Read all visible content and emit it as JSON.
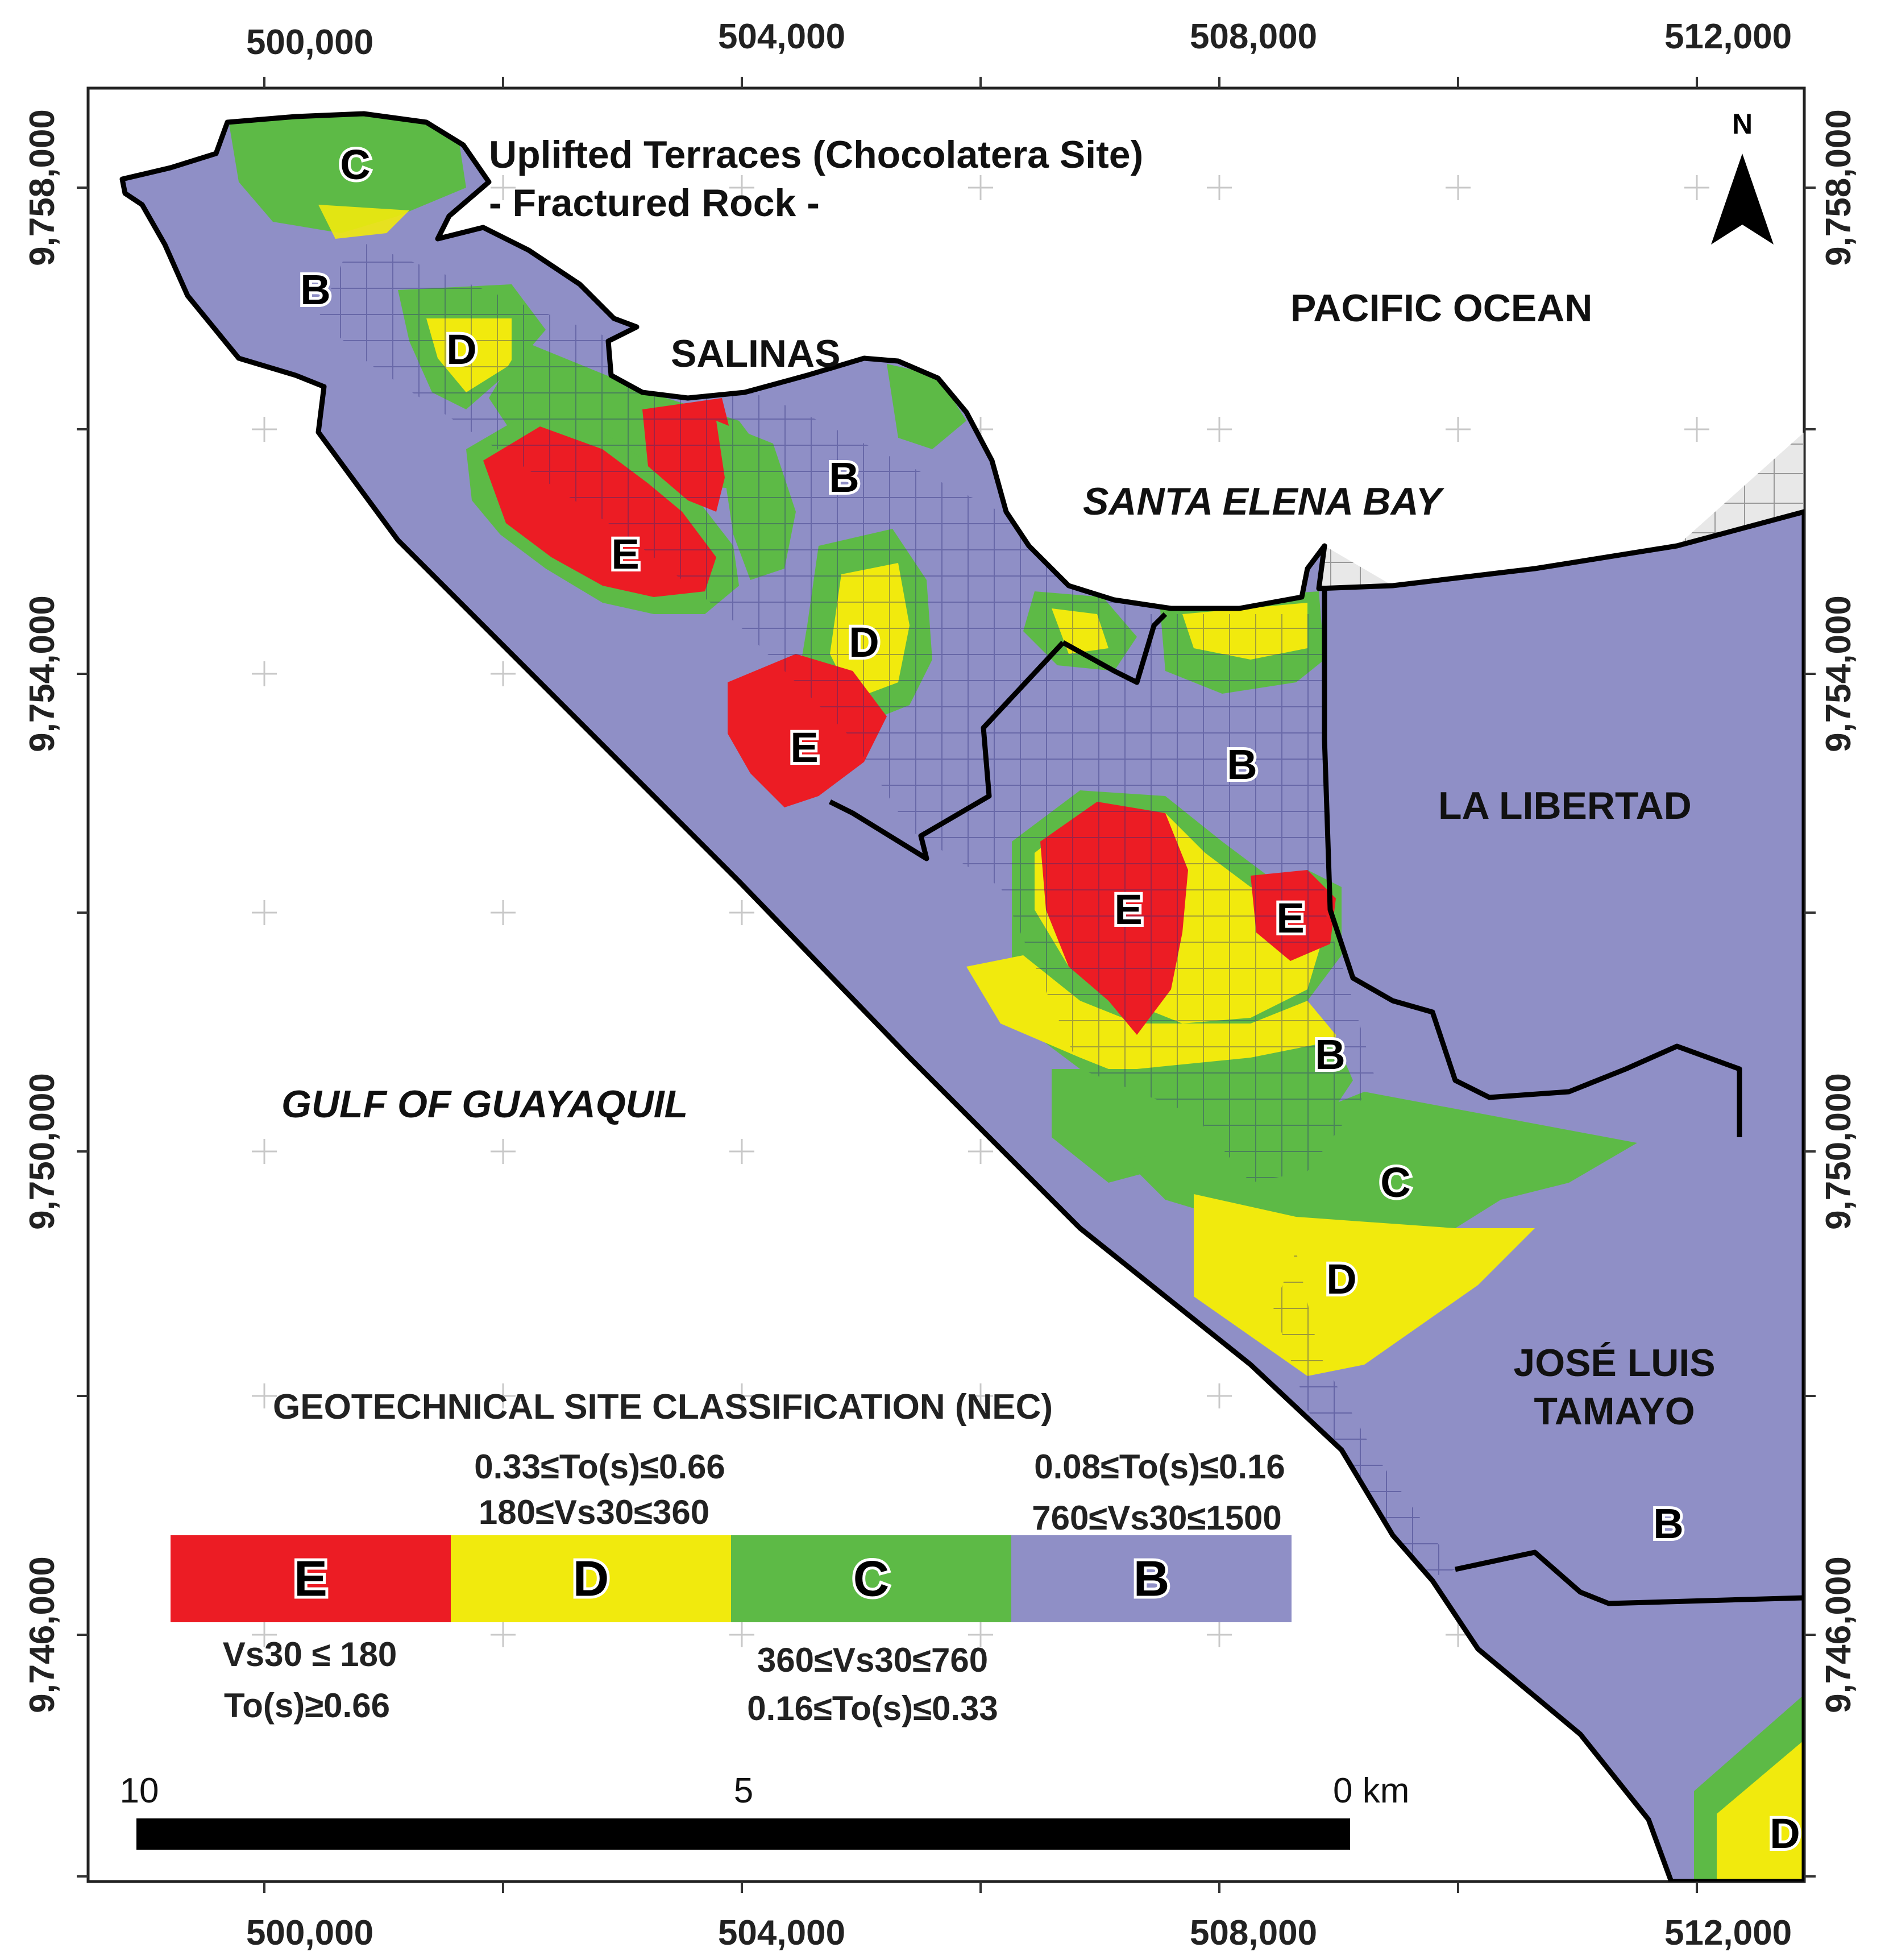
{
  "map": {
    "title_lines": [
      "Uplifted Terraces (Chocolatera Site)",
      "-  Fractured Rock -"
    ],
    "north_label": "N",
    "easting_ticks": [
      "500,000",
      "504,000",
      "508,000",
      "512,000"
    ],
    "northing_ticks": [
      "9,758,000",
      "9,754,000",
      "9,750,000",
      "9,746,000"
    ],
    "water_bodies": {
      "pacific": "PACIFIC OCEAN",
      "bay": "SANTA ELENA BAY",
      "gulf": "GULF OF GUAYAQUIL"
    },
    "places": {
      "salinas": "SALINAS",
      "libertad": "LA LIBERTAD",
      "tamayo_line1": "JOSÉ LUIS",
      "tamayo_line2": "TAMAYO"
    },
    "zone_labels": {
      "c_north": "C",
      "b_west": "B",
      "d_west": "D",
      "e_west": "E",
      "b_salinas": "B",
      "d_mid": "D",
      "e_mid": "E",
      "b_center": "B",
      "e_center": "E",
      "e_east": "E",
      "b_south": "B",
      "c_south": "C",
      "d_south": "D",
      "b_tamayo": "B",
      "d_corner": "D"
    },
    "legend": {
      "title": "GEOTECHNICAL SITE CLASSIFICATION (NEC)",
      "classes": [
        {
          "label": "E",
          "color": "#ec1c24"
        },
        {
          "label": "D",
          "color": "#f1ea0d"
        },
        {
          "label": "C",
          "color": "#5dba46"
        },
        {
          "label": "B",
          "color": "#8f8fc6"
        }
      ],
      "d_to": "0.33≤To(s)≤0.66",
      "d_vs": "180≤Vs30≤360",
      "b_to": "0.08≤To(s)≤0.16",
      "b_vs": "760≤Vs30≤1500",
      "e_vs": "Vs30 ≤ 180",
      "e_to": "To(s)≥0.66",
      "c_vs": "360≤Vs30≤760",
      "c_to": "0.16≤To(s)≤0.33"
    },
    "scale_bar": {
      "left": "10",
      "mid": "5",
      "right": "0 km"
    },
    "colors": {
      "class_e": "#ec1c24",
      "class_d": "#f1ea0d",
      "class_c": "#5dba46",
      "class_b": "#8f8fc6",
      "urban_gray": "#e8e8e8",
      "street_blue": "#2b2b7a",
      "street_gray": "#8a8a8a",
      "boundary": "#000000"
    }
  }
}
